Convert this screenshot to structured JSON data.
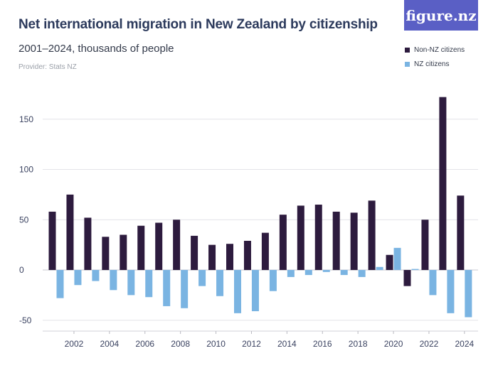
{
  "header": {
    "title": "Net international migration in New Zealand by citizenship",
    "subtitle": "2001–2024, thousands of people",
    "provider": "Provider: Stats NZ",
    "logo_text": "figure.nz"
  },
  "colors": {
    "non_nz": "#2d1b3e",
    "nz": "#7ab4e2",
    "logo_bg": "#5a5fc5",
    "grid": "#e4e4e8"
  },
  "chart_data": {
    "type": "bar",
    "title": "Net international migration in New Zealand by citizenship",
    "subtitle": "2001–2024, thousands of people",
    "xlabel": "",
    "ylabel": "",
    "ylim": [
      -50,
      175
    ],
    "yticks": [
      -50,
      0,
      50,
      100,
      150
    ],
    "xtick_labels": [
      "2002",
      "2004",
      "2006",
      "2008",
      "2010",
      "2012",
      "2014",
      "2016",
      "2018",
      "2020",
      "2022",
      "2024"
    ],
    "categories": [
      "2001",
      "2002",
      "2003",
      "2004",
      "2005",
      "2006",
      "2007",
      "2008",
      "2009",
      "2010",
      "2011",
      "2012",
      "2013",
      "2014",
      "2015",
      "2016",
      "2017",
      "2018",
      "2019",
      "2020",
      "2021",
      "2022",
      "2023",
      "2024"
    ],
    "series": [
      {
        "name": "Non-NZ citizens",
        "color": "#2d1b3e",
        "values": [
          58,
          75,
          52,
          33,
          35,
          44,
          47,
          50,
          34,
          25,
          26,
          29,
          37,
          55,
          64,
          65,
          58,
          57,
          69,
          15,
          -16,
          50,
          172,
          74
        ]
      },
      {
        "name": "NZ citizens",
        "color": "#7ab4e2",
        "values": [
          -28,
          -15,
          -11,
          -20,
          -25,
          -27,
          -36,
          -38,
          -16,
          -26,
          -43,
          -41,
          -21,
          -7,
          -5,
          -2,
          -5,
          -7,
          3,
          22,
          1,
          -25,
          -43,
          -47
        ]
      }
    ],
    "legend_position": "top-right",
    "grid": true
  }
}
